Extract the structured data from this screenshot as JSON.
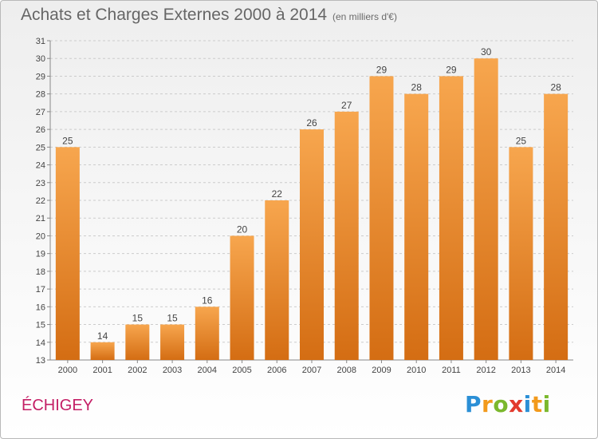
{
  "header": {
    "title": "Achats et Charges Externes 2000 à 2014",
    "subtitle": "(en milliers d'€)"
  },
  "footer": {
    "commune": "ÉCHIGEY",
    "logo_letters": [
      "P",
      "r",
      "o",
      "x",
      "i",
      "t",
      "i"
    ],
    "logo_colors": [
      "#2b8fd6",
      "#f29a1c",
      "#7bb82d",
      "#e23b2e",
      "#2b8fd6",
      "#f29a1c",
      "#7bb82d"
    ]
  },
  "colors": {
    "bar_top": "#f7a64e",
    "bar_bottom": "#d46d13",
    "grid": "#cccccc",
    "axis": "#888888",
    "text": "#444444",
    "commune": "#c41e65"
  },
  "chart_data": {
    "type": "bar",
    "categories": [
      "2000",
      "2001",
      "2002",
      "2003",
      "2004",
      "2005",
      "2006",
      "2007",
      "2008",
      "2009",
      "2010",
      "2011",
      "2012",
      "2013",
      "2014"
    ],
    "values": [
      25,
      14,
      15,
      15,
      16,
      20,
      22,
      26,
      27,
      29,
      28,
      29,
      30,
      25,
      28
    ],
    "data_labels": [
      "25",
      "14",
      "15",
      "15",
      "16",
      "20",
      "22",
      "26",
      "27",
      "29",
      "28",
      "29",
      "30",
      "25",
      "28"
    ],
    "y_ticks": [
      "13",
      "14",
      "15",
      "16",
      "17",
      "18",
      "19",
      "20",
      "21",
      "22",
      "23",
      "24",
      "25",
      "26",
      "27",
      "28",
      "29",
      "30",
      "31"
    ],
    "title": "Achats et Charges Externes 2000 à 2014",
    "xlabel": "",
    "ylabel": "",
    "ylim": [
      13,
      31
    ],
    "grid": true,
    "legend": "none"
  }
}
